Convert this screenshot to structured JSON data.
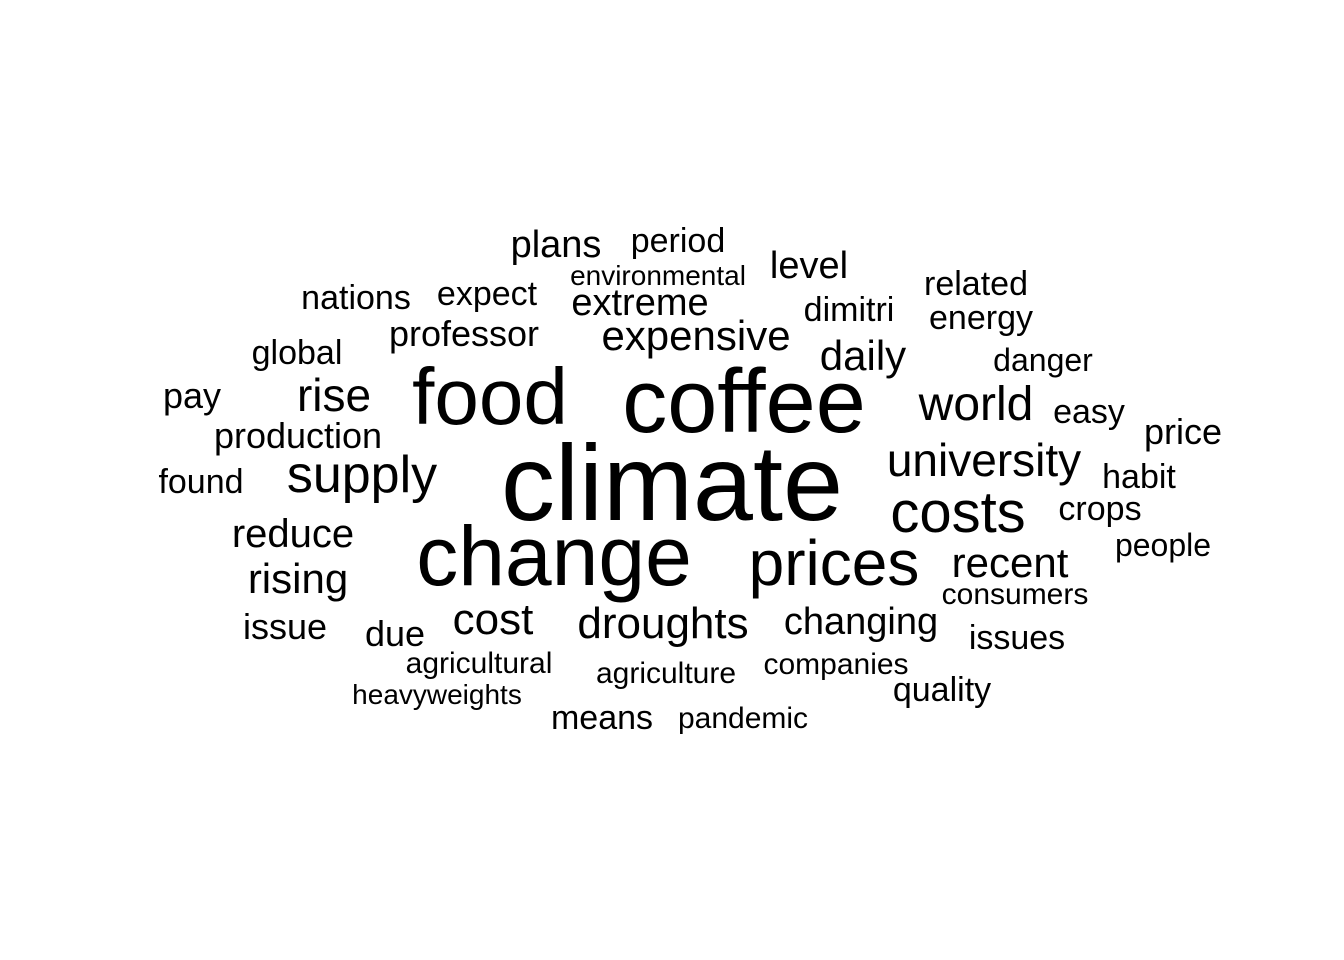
{
  "words": [
    {
      "text": "climate",
      "color": "#000000"
    },
    {
      "text": "change",
      "color": "#000000"
    },
    {
      "text": "coffee",
      "color": "#000000"
    },
    {
      "text": "food",
      "color": "#000000"
    },
    {
      "text": "prices",
      "color": "#000000"
    },
    {
      "text": "costs",
      "color": "#000000"
    },
    {
      "text": "supply",
      "color": "#000000"
    },
    {
      "text": "university",
      "color": "#000000"
    },
    {
      "text": "world",
      "color": "#000000"
    },
    {
      "text": "rise",
      "color": "#000000"
    },
    {
      "text": "droughts",
      "color": "#000000"
    },
    {
      "text": "cost",
      "color": "#000000"
    },
    {
      "text": "recent",
      "color": "#000000"
    },
    {
      "text": "rising",
      "color": "#000000"
    },
    {
      "text": "reduce",
      "color": "#000000"
    },
    {
      "text": "expensive",
      "color": "#000000"
    },
    {
      "text": "changing",
      "color": "#000000"
    },
    {
      "text": "extreme",
      "color": "#000000"
    },
    {
      "text": "daily",
      "color": "#000000"
    },
    {
      "text": "professor",
      "color": "#000000"
    },
    {
      "text": "production",
      "color": "#000000"
    },
    {
      "text": "level",
      "color": "#000000"
    },
    {
      "text": "plans",
      "color": "#000000"
    },
    {
      "text": "due",
      "color": "#000000"
    },
    {
      "text": "issue",
      "color": "#000000"
    },
    {
      "text": "price",
      "color": "#000000"
    },
    {
      "text": "issues",
      "color": "#000000"
    },
    {
      "text": "crops",
      "color": "#000000"
    },
    {
      "text": "habit",
      "color": "#000000"
    },
    {
      "text": "pay",
      "color": "#000000"
    },
    {
      "text": "means",
      "color": "#000000"
    },
    {
      "text": "period",
      "color": "#000000"
    },
    {
      "text": "quality",
      "color": "#000000"
    },
    {
      "text": "dimitri",
      "color": "#000000"
    },
    {
      "text": "easy",
      "color": "#000000"
    },
    {
      "text": "found",
      "color": "#000000"
    },
    {
      "text": "global",
      "color": "#000000"
    },
    {
      "text": "nations",
      "color": "#000000"
    },
    {
      "text": "expect",
      "color": "#000000"
    },
    {
      "text": "related",
      "color": "#000000"
    },
    {
      "text": "energy",
      "color": "#000000"
    },
    {
      "text": "danger",
      "color": "#000000"
    },
    {
      "text": "people",
      "color": "#000000"
    },
    {
      "text": "companies",
      "color": "#000000"
    },
    {
      "text": "consumers",
      "color": "#000000"
    },
    {
      "text": "agriculture",
      "color": "#000000"
    },
    {
      "text": "agricultural",
      "color": "#000000"
    },
    {
      "text": "pandemic",
      "color": "#000000"
    },
    {
      "text": "environmental",
      "color": "#000000"
    },
    {
      "text": "heavyweights",
      "color": "#000000"
    }
  ]
}
